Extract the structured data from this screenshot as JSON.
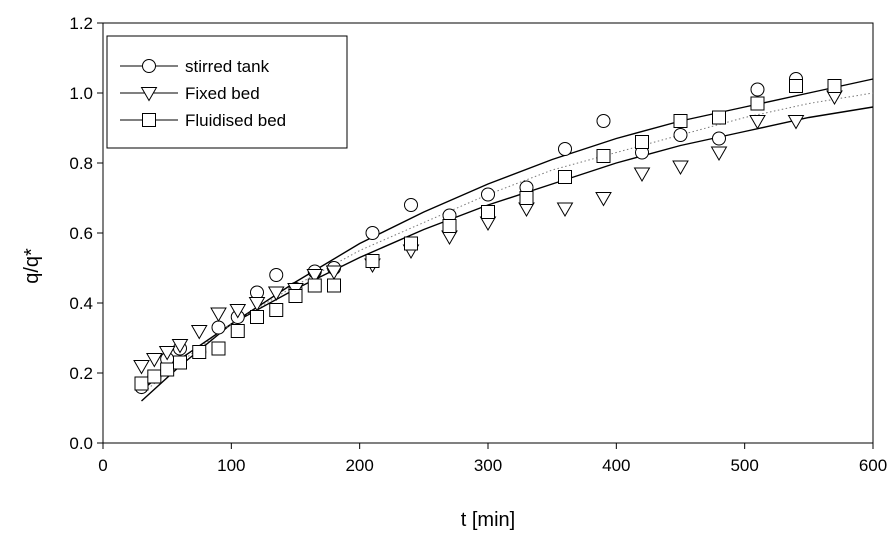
{
  "chart_data": {
    "type": "scatter",
    "title": "",
    "xlabel": "t [min]",
    "ylabel": "q/q*",
    "xlim": [
      0,
      600
    ],
    "ylim": [
      0.0,
      1.2
    ],
    "xticks": [
      0,
      100,
      200,
      300,
      400,
      500,
      600
    ],
    "xtick_labels": [
      "0",
      "100",
      "200",
      "300",
      "400",
      "500",
      "600"
    ],
    "yticks": [
      0.0,
      0.2,
      0.4,
      0.6,
      0.8,
      1.0,
      1.2
    ],
    "ytick_labels": [
      "0.0",
      "0.2",
      "0.4",
      "0.6",
      "0.8",
      "1.0",
      "1.2"
    ],
    "grid": false,
    "legend_position": "top-left",
    "series": [
      {
        "name": "stirred tank",
        "marker": "circle",
        "x": [
          30,
          40,
          50,
          60,
          75,
          90,
          105,
          120,
          135,
          150,
          165,
          180,
          210,
          240,
          270,
          300,
          330,
          360,
          390,
          420,
          450,
          480,
          510,
          540
        ],
        "y": [
          0.16,
          0.19,
          0.24,
          0.27,
          0.26,
          0.33,
          0.36,
          0.43,
          0.48,
          0.44,
          0.49,
          0.5,
          0.6,
          0.68,
          0.65,
          0.71,
          0.73,
          0.84,
          0.92,
          0.83,
          0.88,
          0.87,
          1.01,
          1.04
        ]
      },
      {
        "name": "Fixed bed",
        "marker": "triangle-down",
        "x": [
          30,
          40,
          50,
          60,
          75,
          90,
          105,
          120,
          135,
          150,
          165,
          180,
          210,
          240,
          270,
          300,
          330,
          360,
          390,
          420,
          450,
          480,
          510,
          540,
          570
        ],
        "y": [
          0.22,
          0.24,
          0.26,
          0.28,
          0.32,
          0.37,
          0.38,
          0.4,
          0.43,
          0.44,
          0.48,
          0.49,
          0.51,
          0.55,
          0.59,
          0.63,
          0.67,
          0.67,
          0.7,
          0.77,
          0.79,
          0.83,
          0.92,
          0.92,
          0.99
        ]
      },
      {
        "name": "Fluidised bed",
        "marker": "square",
        "x": [
          30,
          40,
          50,
          60,
          75,
          90,
          105,
          120,
          135,
          150,
          165,
          180,
          210,
          240,
          270,
          300,
          330,
          360,
          390,
          420,
          450,
          480,
          510,
          540,
          570
        ],
        "y": [
          0.17,
          0.19,
          0.21,
          0.23,
          0.26,
          0.27,
          0.32,
          0.36,
          0.38,
          0.42,
          0.45,
          0.45,
          0.52,
          0.57,
          0.62,
          0.66,
          0.7,
          0.76,
          0.82,
          0.86,
          0.92,
          0.93,
          0.97,
          1.02,
          1.02
        ]
      }
    ],
    "fit_lines": [
      {
        "style": "solid",
        "x": [
          30,
          60,
          100,
          150,
          200,
          250,
          300,
          350,
          400,
          450,
          500,
          550,
          600
        ],
        "y": [
          0.12,
          0.22,
          0.34,
          0.46,
          0.57,
          0.66,
          0.74,
          0.81,
          0.87,
          0.92,
          0.96,
          1.0,
          1.04
        ]
      },
      {
        "style": "solid",
        "x": [
          30,
          60,
          100,
          150,
          200,
          250,
          300,
          350,
          400,
          450,
          500,
          550,
          600
        ],
        "y": [
          0.15,
          0.24,
          0.34,
          0.44,
          0.53,
          0.61,
          0.68,
          0.74,
          0.8,
          0.85,
          0.89,
          0.93,
          0.96
        ]
      },
      {
        "style": "dotted",
        "x": [
          30,
          60,
          100,
          150,
          200,
          250,
          300,
          350,
          400,
          450,
          500,
          550,
          600
        ],
        "y": [
          0.14,
          0.23,
          0.34,
          0.45,
          0.55,
          0.63,
          0.71,
          0.78,
          0.83,
          0.88,
          0.93,
          0.97,
          1.0
        ]
      }
    ]
  }
}
